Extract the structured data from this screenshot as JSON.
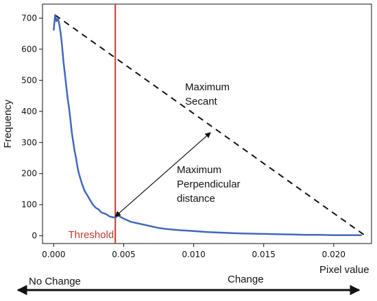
{
  "chart_data": {
    "type": "line",
    "title": "",
    "xlabel": "Pixel value",
    "ylabel": "Frequency",
    "xlim": [
      -0.0008,
      0.0227
    ],
    "ylim": [
      -25,
      745
    ],
    "xticks": [
      "0.000",
      "0.005",
      "0.010",
      "0.015",
      "0.020"
    ],
    "yticks": [
      "0",
      "100",
      "200",
      "300",
      "400",
      "500",
      "600",
      "700"
    ],
    "grid": false,
    "legend": "none",
    "series": [
      {
        "color": "#4169b8",
        "x": [
          0.0,
          0.0001,
          0.0002,
          0.0003,
          0.0004,
          0.0005,
          0.0006,
          0.0007,
          0.0008,
          0.0009,
          0.001,
          0.0011,
          0.0012,
          0.0013,
          0.0014,
          0.0015,
          0.0016,
          0.0017,
          0.0018,
          0.0019,
          0.002,
          0.0022,
          0.0024,
          0.0026,
          0.0028,
          0.003,
          0.0032,
          0.0034,
          0.0036,
          0.0038,
          0.004,
          0.0042,
          0.0044,
          0.0046,
          0.0048,
          0.005,
          0.0055,
          0.006,
          0.0065,
          0.007,
          0.0075,
          0.008,
          0.009,
          0.01,
          0.011,
          0.012,
          0.013,
          0.014,
          0.015,
          0.016,
          0.017,
          0.018,
          0.019,
          0.02,
          0.021,
          0.022
        ],
        "y": [
          660,
          710,
          690,
          700,
          680,
          650,
          610,
          560,
          520,
          480,
          440,
          410,
          370,
          330,
          300,
          270,
          250,
          220,
          200,
          185,
          170,
          145,
          130,
          115,
          100,
          90,
          85,
          75,
          72,
          68,
          62,
          60,
          58,
          65,
          60,
          55,
          45,
          40,
          35,
          30,
          25,
          22,
          18,
          15,
          12,
          10,
          8,
          7,
          6,
          5,
          4,
          3,
          3,
          2,
          2,
          2
        ]
      }
    ],
    "threshold": {
      "x": 0.0044,
      "label": "Threshold",
      "color": "#c0392b"
    },
    "secant": {
      "x1": 0.0001,
      "y1": 710,
      "x2": 0.0222,
      "y2": 2
    },
    "perpendicular": {
      "x1": 0.0044,
      "y1": 62,
      "x2": 0.0112,
      "y2": 332
    },
    "annotations": {
      "secant_label": [
        "Maximum",
        "Secant"
      ],
      "perp_label": [
        "Maximum",
        "Perpendicular",
        "distance"
      ]
    },
    "bottom_scale": {
      "left": "No Change",
      "right": "Change"
    }
  }
}
